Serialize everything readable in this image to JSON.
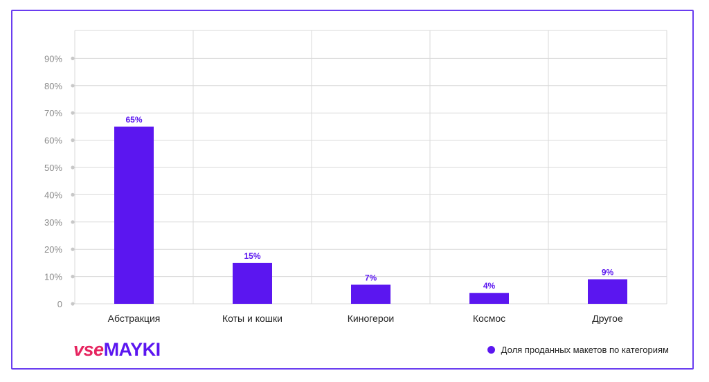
{
  "colors": {
    "bar": "#5b16f0",
    "frame": "#6a3df0",
    "logo_pink": "#e6245f",
    "logo_purple": "#5b16f0",
    "grid": "#d9d9d9",
    "tick": "#8a8a8a"
  },
  "logo": {
    "part1": "vse",
    "part2": "MAYKI"
  },
  "legend": {
    "label": "Доля проданных макетов по категориям"
  },
  "chart_data": {
    "type": "bar",
    "categories": [
      "Абстракция",
      "Коты и кошки",
      "Киногерои",
      "Космос",
      "Другое"
    ],
    "series": [
      {
        "name": "Доля проданных макетов по категориям",
        "values": [
          65,
          15,
          7,
          4,
          9
        ]
      }
    ],
    "value_labels": [
      "65%",
      "15%",
      "7%",
      "4%",
      "9%"
    ],
    "yticks": [
      "0",
      "10%",
      "20%",
      "30%",
      "40%",
      "50%",
      "60%",
      "70%",
      "80%",
      "90%"
    ],
    "ylim": [
      0,
      100
    ],
    "grid": true,
    "legend_position": "bottom-right"
  }
}
